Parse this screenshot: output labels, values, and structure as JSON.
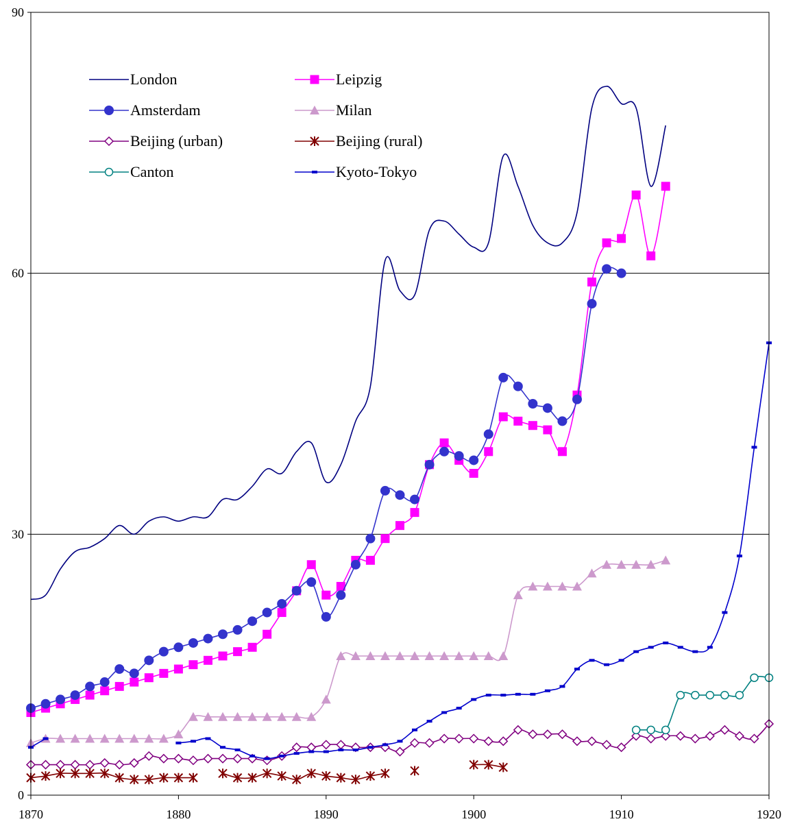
{
  "chart_data": {
    "type": "line",
    "title": "",
    "xlabel": "",
    "ylabel": "",
    "xlim": [
      1870,
      1920
    ],
    "ylim": [
      0,
      90
    ],
    "xticks": [
      1870,
      1880,
      1890,
      1900,
      1910,
      1920
    ],
    "yticks": [
      0,
      30,
      60,
      90
    ],
    "ytick_labels": [
      "0",
      "30",
      "60",
      "90"
    ],
    "grid": "horizontal",
    "legend": "upper-left, two columns",
    "series": [
      {
        "name": "London",
        "color": "#000080",
        "marker": "none",
        "dash": false,
        "x": [
          1870,
          1871,
          1872,
          1873,
          1874,
          1875,
          1876,
          1877,
          1878,
          1879,
          1880,
          1881,
          1882,
          1883,
          1884,
          1885,
          1886,
          1887,
          1888,
          1889,
          1890,
          1891,
          1892,
          1893,
          1894,
          1895,
          1896,
          1897,
          1898,
          1899,
          1900,
          1901,
          1902,
          1903,
          1904,
          1905,
          1906,
          1907,
          1908,
          1909,
          1910,
          1911,
          1912,
          1913
        ],
        "y": [
          22.5,
          23,
          26,
          28,
          28.5,
          29.5,
          31,
          30,
          31.5,
          32,
          31.5,
          32,
          32,
          34,
          34,
          35.5,
          37.5,
          37,
          39.5,
          40.5,
          36,
          38,
          43,
          47,
          61.5,
          58,
          57.5,
          65,
          66,
          64.5,
          63,
          63.5,
          73.5,
          70,
          65.5,
          63.5,
          63.5,
          67,
          79,
          81.5,
          79.5,
          79,
          70,
          77
        ]
      },
      {
        "name": "Leipzig",
        "color": "#ff00ff",
        "marker": "square",
        "dash": false,
        "x": [
          1870,
          1871,
          1872,
          1873,
          1874,
          1875,
          1876,
          1877,
          1878,
          1879,
          1880,
          1881,
          1882,
          1883,
          1884,
          1885,
          1886,
          1887,
          1888,
          1889,
          1890,
          1891,
          1892,
          1893,
          1894,
          1895,
          1896,
          1897,
          1898,
          1899,
          1900,
          1901,
          1902,
          1903,
          1904,
          1905,
          1906,
          1907,
          1908,
          1909,
          1910,
          1911,
          1912,
          1913
        ],
        "y": [
          9.5,
          10,
          10.5,
          11,
          11.5,
          12,
          12.5,
          13,
          13.5,
          14,
          14.5,
          15,
          15.5,
          16,
          16.5,
          17,
          18.5,
          21,
          23.5,
          26.5,
          23,
          24,
          27,
          27,
          29.5,
          31,
          32.5,
          38,
          40.5,
          38.5,
          37,
          39.5,
          43.5,
          43,
          42.5,
          42,
          39.5,
          46,
          59,
          63.5,
          64,
          69,
          62,
          70
        ]
      },
      {
        "name": "Amsterdam",
        "color": "#3333cc",
        "marker": "circle",
        "dash": false,
        "x": [
          1870,
          1871,
          1872,
          1873,
          1874,
          1875,
          1876,
          1877,
          1878,
          1879,
          1880,
          1881,
          1882,
          1883,
          1884,
          1885,
          1886,
          1887,
          1888,
          1889,
          1890,
          1891,
          1892,
          1893,
          1894,
          1895,
          1896,
          1897,
          1898,
          1899,
          1900,
          1901,
          1902,
          1903,
          1904,
          1905,
          1906,
          1907,
          1908,
          1909,
          1910
        ],
        "y": [
          10,
          10.5,
          11,
          11.5,
          12.5,
          13,
          14.5,
          14,
          15.5,
          16.5,
          17,
          17.5,
          18,
          18.5,
          19,
          20,
          21,
          22,
          23.5,
          24.5,
          20.5,
          23,
          26.5,
          29.5,
          35,
          34.5,
          34,
          38,
          39.5,
          39,
          38.5,
          41.5,
          48,
          47,
          45,
          44.5,
          43,
          45.5,
          56.5,
          60.5,
          60
        ]
      },
      {
        "name": "Milan",
        "color": "#cc99cc",
        "marker": "triangle",
        "dash": false,
        "x": [
          1870,
          1871,
          1872,
          1873,
          1874,
          1875,
          1876,
          1877,
          1878,
          1879,
          1880,
          1881,
          1882,
          1883,
          1884,
          1885,
          1886,
          1887,
          1888,
          1889,
          1890,
          1891,
          1892,
          1893,
          1894,
          1895,
          1896,
          1897,
          1898,
          1899,
          1900,
          1901,
          1902,
          1903,
          1904,
          1905,
          1906,
          1907,
          1908,
          1909,
          1910,
          1911,
          1912,
          1913
        ],
        "y": [
          6,
          6.5,
          6.5,
          6.5,
          6.5,
          6.5,
          6.5,
          6.5,
          6.5,
          6.5,
          7,
          9,
          9,
          9,
          9,
          9,
          9,
          9,
          9,
          9,
          11,
          16,
          16,
          16,
          16,
          16,
          16,
          16,
          16,
          16,
          16,
          16,
          16,
          23,
          24,
          24,
          24,
          24,
          25.5,
          26.5,
          26.5,
          26.5,
          26.5,
          27
        ]
      },
      {
        "name": "Beijing (urban)",
        "color": "#800080",
        "marker": "diamond",
        "dash": false,
        "x": [
          1870,
          1871,
          1872,
          1873,
          1874,
          1875,
          1876,
          1877,
          1878,
          1879,
          1880,
          1881,
          1882,
          1883,
          1884,
          1885,
          1886,
          1887,
          1888,
          1889,
          1890,
          1891,
          1892,
          1893,
          1894,
          1895,
          1896,
          1897,
          1898,
          1899,
          1900,
          1901,
          1902,
          1903,
          1904,
          1905,
          1906,
          1907,
          1908,
          1909,
          1910,
          1911,
          1912,
          1913,
          1914,
          1915,
          1916,
          1917,
          1918,
          1919,
          1920
        ],
        "y": [
          3.5,
          3.5,
          3.5,
          3.5,
          3.5,
          3.7,
          3.5,
          3.7,
          4.5,
          4.2,
          4.2,
          4,
          4.2,
          4.2,
          4.2,
          4.2,
          4,
          4.5,
          5.5,
          5.5,
          5.8,
          5.8,
          5.5,
          5.5,
          5.5,
          5,
          6,
          6,
          6.5,
          6.5,
          6.5,
          6.2,
          6.2,
          7.5,
          7,
          7,
          7,
          6.2,
          6.2,
          5.8,
          5.5,
          6.8,
          6.5,
          6.8,
          6.8,
          6.5,
          6.8,
          7.5,
          6.8,
          6.5,
          8.2
        ]
      },
      {
        "name": "Beijing (rural)",
        "color": "#800000",
        "marker": "asterisk",
        "dash": false,
        "x": [
          1870,
          1871,
          1872,
          1873,
          1874,
          1875,
          1876,
          1877,
          1878,
          1879,
          1880,
          1881,
          null,
          1883,
          1884,
          1885,
          1886,
          1887,
          1888,
          1889,
          1890,
          1891,
          1892,
          1893,
          1894,
          null,
          1896,
          null,
          1900,
          1901,
          1902
        ],
        "y": [
          2,
          2.2,
          2.5,
          2.5,
          2.5,
          2.5,
          2,
          1.8,
          1.8,
          2,
          2,
          2,
          null,
          2.5,
          2,
          2,
          2.5,
          2.2,
          1.8,
          2.5,
          2.2,
          2,
          1.8,
          2.2,
          2.5,
          null,
          2.8,
          null,
          3.5,
          3.5,
          3.2
        ]
      },
      {
        "name": "Canton",
        "color": "#008080",
        "marker": "circle-open",
        "dash": false,
        "x": [
          1911,
          1912,
          1913,
          1914,
          1915,
          1916,
          1917,
          1918,
          1919,
          1920
        ],
        "y": [
          7.5,
          7.5,
          7.5,
          11.5,
          11.5,
          11.5,
          11.5,
          11.5,
          13.5,
          13.5
        ]
      },
      {
        "name": "Kyoto-Tokyo",
        "color": "#0000cc",
        "marker": "dash",
        "dash": false,
        "x": [
          1870,
          1871,
          null,
          1880,
          1881,
          1882,
          1883,
          1884,
          1885,
          1886,
          1887,
          1888,
          1889,
          1890,
          1891,
          1892,
          1893,
          1894,
          1895,
          1896,
          1897,
          1898,
          1899,
          1900,
          1901,
          1902,
          1903,
          1904,
          1905,
          1906,
          1907,
          1908,
          1909,
          1910,
          1911,
          1912,
          1913,
          1914,
          1915,
          1916,
          1917,
          1918,
          1919,
          1920
        ],
        "y": [
          5.5,
          6.5,
          null,
          6,
          6.2,
          6.5,
          5.5,
          5.2,
          4.5,
          4.2,
          4.5,
          4.8,
          5,
          5,
          5.2,
          5.2,
          5.5,
          5.8,
          6.2,
          7.5,
          8.5,
          9.5,
          10,
          11,
          11.5,
          11.5,
          11.6,
          11.6,
          12,
          12.5,
          14.5,
          15.5,
          15,
          15.5,
          16.5,
          17,
          17.5,
          17,
          16.5,
          17,
          21,
          27.5,
          40,
          52
        ]
      }
    ]
  }
}
